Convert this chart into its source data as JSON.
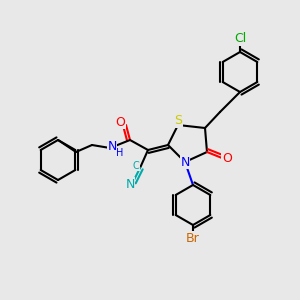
{
  "bg_color": "#e8e8e8",
  "bond_color": "#000000",
  "bond_width": 1.5,
  "colors": {
    "N": "#0000ff",
    "O": "#ff0000",
    "S": "#cccc00",
    "Cl": "#00aa00",
    "Br": "#cc6600",
    "C": "#000000",
    "CN": "#00aaaa"
  },
  "font_size": 8,
  "figsize": [
    3.0,
    3.0
  ],
  "dpi": 100
}
